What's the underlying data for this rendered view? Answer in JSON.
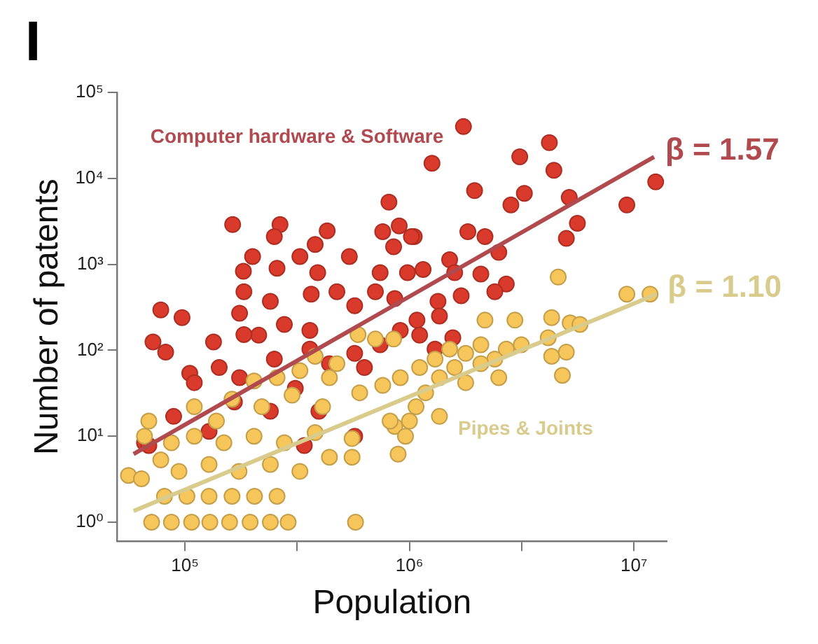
{
  "chart_data": {
    "type": "scatter",
    "title": "I",
    "xlabel": "Population",
    "ylabel": "Number of patents",
    "log": "xy",
    "grid": false,
    "legend": false,
    "marker": "circle",
    "xlim": [
      50000,
      14000000
    ],
    "ylim": [
      0.6,
      100000
    ],
    "xticks": [
      {
        "value": 100000,
        "label": "10⁵"
      },
      {
        "value": 316228,
        "label": null
      },
      {
        "value": 1000000,
        "label": "10⁶"
      },
      {
        "value": 3162278,
        "label": null
      },
      {
        "value": 10000000,
        "label": "10⁷"
      }
    ],
    "yticks": [
      {
        "value": 1,
        "label": "10⁰"
      },
      {
        "value": 10,
        "label": "10¹"
      },
      {
        "value": 100,
        "label": "10²"
      },
      {
        "value": 1000,
        "label": "10³"
      },
      {
        "value": 10000,
        "label": "10⁴"
      },
      {
        "value": 100000,
        "label": "10⁵"
      }
    ],
    "series": [
      {
        "name": "Computer hardware & Software",
        "color": "#d93a2b",
        "x": [
          810000,
          163000,
          265000,
          250000,
          430000,
          760000,
          900000,
          1050000,
          380000,
          200000,
          325000,
          540000,
          850000,
          182000,
          257000,
          390000,
          740000,
          980000,
          183000,
          240000,
          365000,
          475000,
          705000,
          860000,
          78000,
          97000,
          175000,
          277000,
          570000,
          72000,
          134000,
          213000,
          360000,
          82000,
          66000,
          105000,
          1740000,
          4200000,
          1260000,
          3100000,
          4400000,
          1950000,
          3250000,
          2830000,
          5150000,
          9300000,
          12500000,
          5600000,
          5000000,
          1020000,
          1820000,
          2170000,
          1510000,
          2500000,
          1590000,
          2080000,
          2700000,
          2400000,
          1700000,
          1150000,
          1340000,
          1080000,
          1360000,
          1110000,
          1560000,
          1300000,
          183000,
          250000,
          360000,
          440000,
          570000,
          740000,
          910000,
          142000,
          175000,
          110000,
          89000,
          128000,
          69000,
          570000,
          340000,
          240000,
          395000,
          630000,
          310000,
          166000
        ],
        "values": [
          5300,
          2900,
          2900,
          2100,
          2450,
          2400,
          2800,
          2100,
          1700,
          1230,
          1230,
          1230,
          1600,
          830,
          900,
          800,
          800,
          800,
          480,
          370,
          450,
          480,
          480,
          400,
          295,
          240,
          270,
          200,
          330,
          125,
          125,
          150,
          170,
          95,
          8.4,
          54,
          40000,
          26000,
          15000,
          17800,
          12400,
          7200,
          6700,
          4900,
          6000,
          4900,
          9100,
          3000,
          2000,
          2100,
          2400,
          2100,
          1130,
          1380,
          800,
          770,
          590,
          480,
          430,
          870,
          370,
          224,
          250,
          150,
          140,
          103,
          152,
          79,
          103,
          70,
          92,
          116,
          170,
          63,
          48,
          42,
          17,
          11.4,
          7.8,
          10,
          7.8,
          19.5,
          19.5,
          63,
          36,
          25
        ]
      },
      {
        "name": "Pipes & Joints",
        "color": "#f6c65b",
        "x": [
          9300000,
          11800000,
          4600000,
          2170000,
          2950000,
          4300000,
          5200000,
          5750000,
          4150000,
          4300000,
          5000000,
          4800000,
          3150000,
          2700000,
          2400000,
          2080000,
          1780000,
          1590000,
          1780000,
          2500000,
          1510000,
          1300000,
          1360000,
          1110000,
          1180000,
          1070000,
          1360000,
          2080000,
          910000,
          860000,
          1000000,
          705000,
          850000,
          71000,
          87000,
          107000,
          129000,
          158000,
          195000,
          240000,
          288000,
          575000,
          81000,
          102000,
          128000,
          162000,
          204000,
          257000,
          56000,
          64000,
          69000,
          78000,
          94000,
          128000,
          174000,
          240000,
          325000,
          440000,
          110000,
          149000,
          203000,
          277000,
          380000,
          555000,
          820000,
          110000,
          162000,
          220000,
          300000,
          410000,
          600000,
          760000,
          203000,
          325000,
          475000,
          380000,
          590000,
          440000,
          257000,
          138000,
          87000,
          66000,
          555000,
          890000,
          960000
        ],
        "values": [
          450,
          450,
          710,
          224,
          224,
          240,
          208,
          200,
          140,
          85,
          95,
          51,
          116,
          103,
          79,
          70,
          92,
          63,
          42,
          48,
          103,
          79,
          48,
          63,
          32,
          22,
          17,
          116,
          48,
          13,
          15,
          135,
          135,
          1,
          1,
          1,
          1,
          1,
          1,
          1,
          1,
          1,
          2,
          2,
          2,
          2,
          2,
          2,
          3.5,
          3.2,
          15,
          5.3,
          3.9,
          4.7,
          3.9,
          4.7,
          3.9,
          5.7,
          10,
          8.4,
          10,
          8.4,
          11,
          9.4,
          15,
          22,
          27,
          22,
          30,
          22,
          32,
          39,
          44,
          58,
          70,
          85,
          152,
          48,
          48,
          15,
          8.4,
          10,
          5.7,
          6.2,
          10
        ]
      },
      {
        "type": "line",
        "color": "#b04a4f",
        "marker": "none",
        "x": [
          59000,
          12300000
        ],
        "values": [
          6.2,
          17800
        ]
      },
      {
        "type": "line",
        "color": "#d8cb8c",
        "marker": "none",
        "x": [
          59000,
          12600000
        ],
        "values": [
          1.35,
          450
        ]
      }
    ],
    "annotations": [
      {
        "text": "β = 1.57",
        "x": 12300000,
        "y": 17800
      },
      {
        "text": "β = 1.10",
        "x": 12600000,
        "y": 450
      }
    ]
  }
}
